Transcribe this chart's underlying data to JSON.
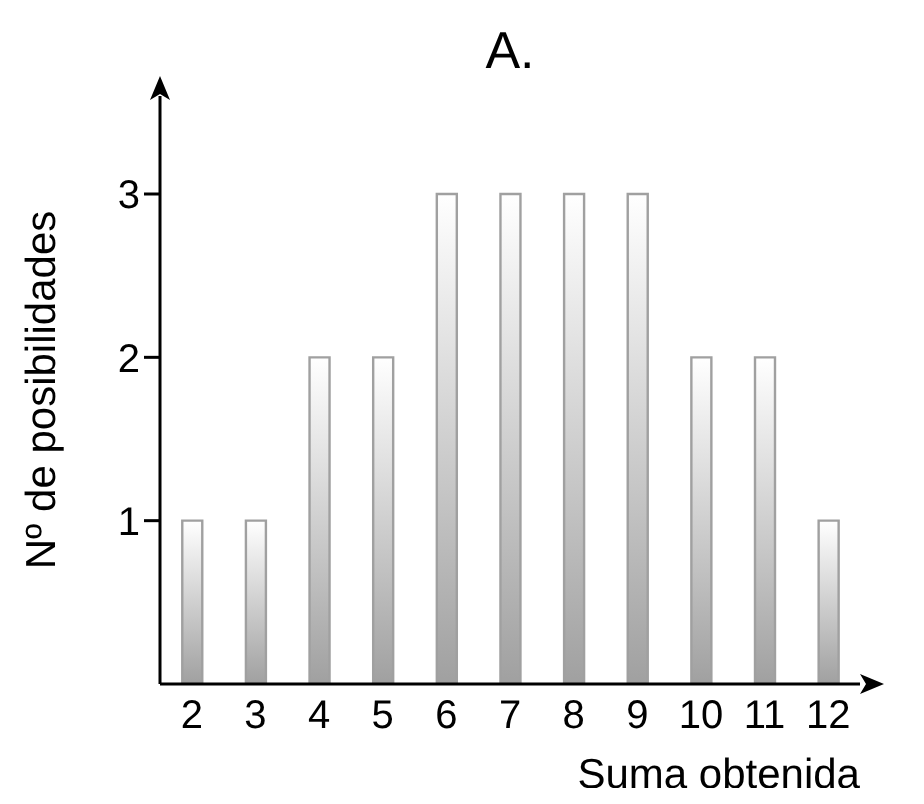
{
  "chart_data": {
    "type": "bar",
    "title": "A.",
    "xlabel": "Suma obtenida",
    "ylabel": "Nº de posibilidades",
    "categories": [
      "2",
      "3",
      "4",
      "5",
      "6",
      "7",
      "8",
      "9",
      "10",
      "11",
      "12"
    ],
    "values": [
      1,
      1,
      2,
      2,
      3,
      3,
      3,
      3,
      2,
      2,
      1
    ],
    "color": "#a0a0a0",
    "ylim": [
      0,
      3.6
    ],
    "yticks": [
      1,
      2,
      3
    ],
    "grid": false,
    "legend": false
  }
}
